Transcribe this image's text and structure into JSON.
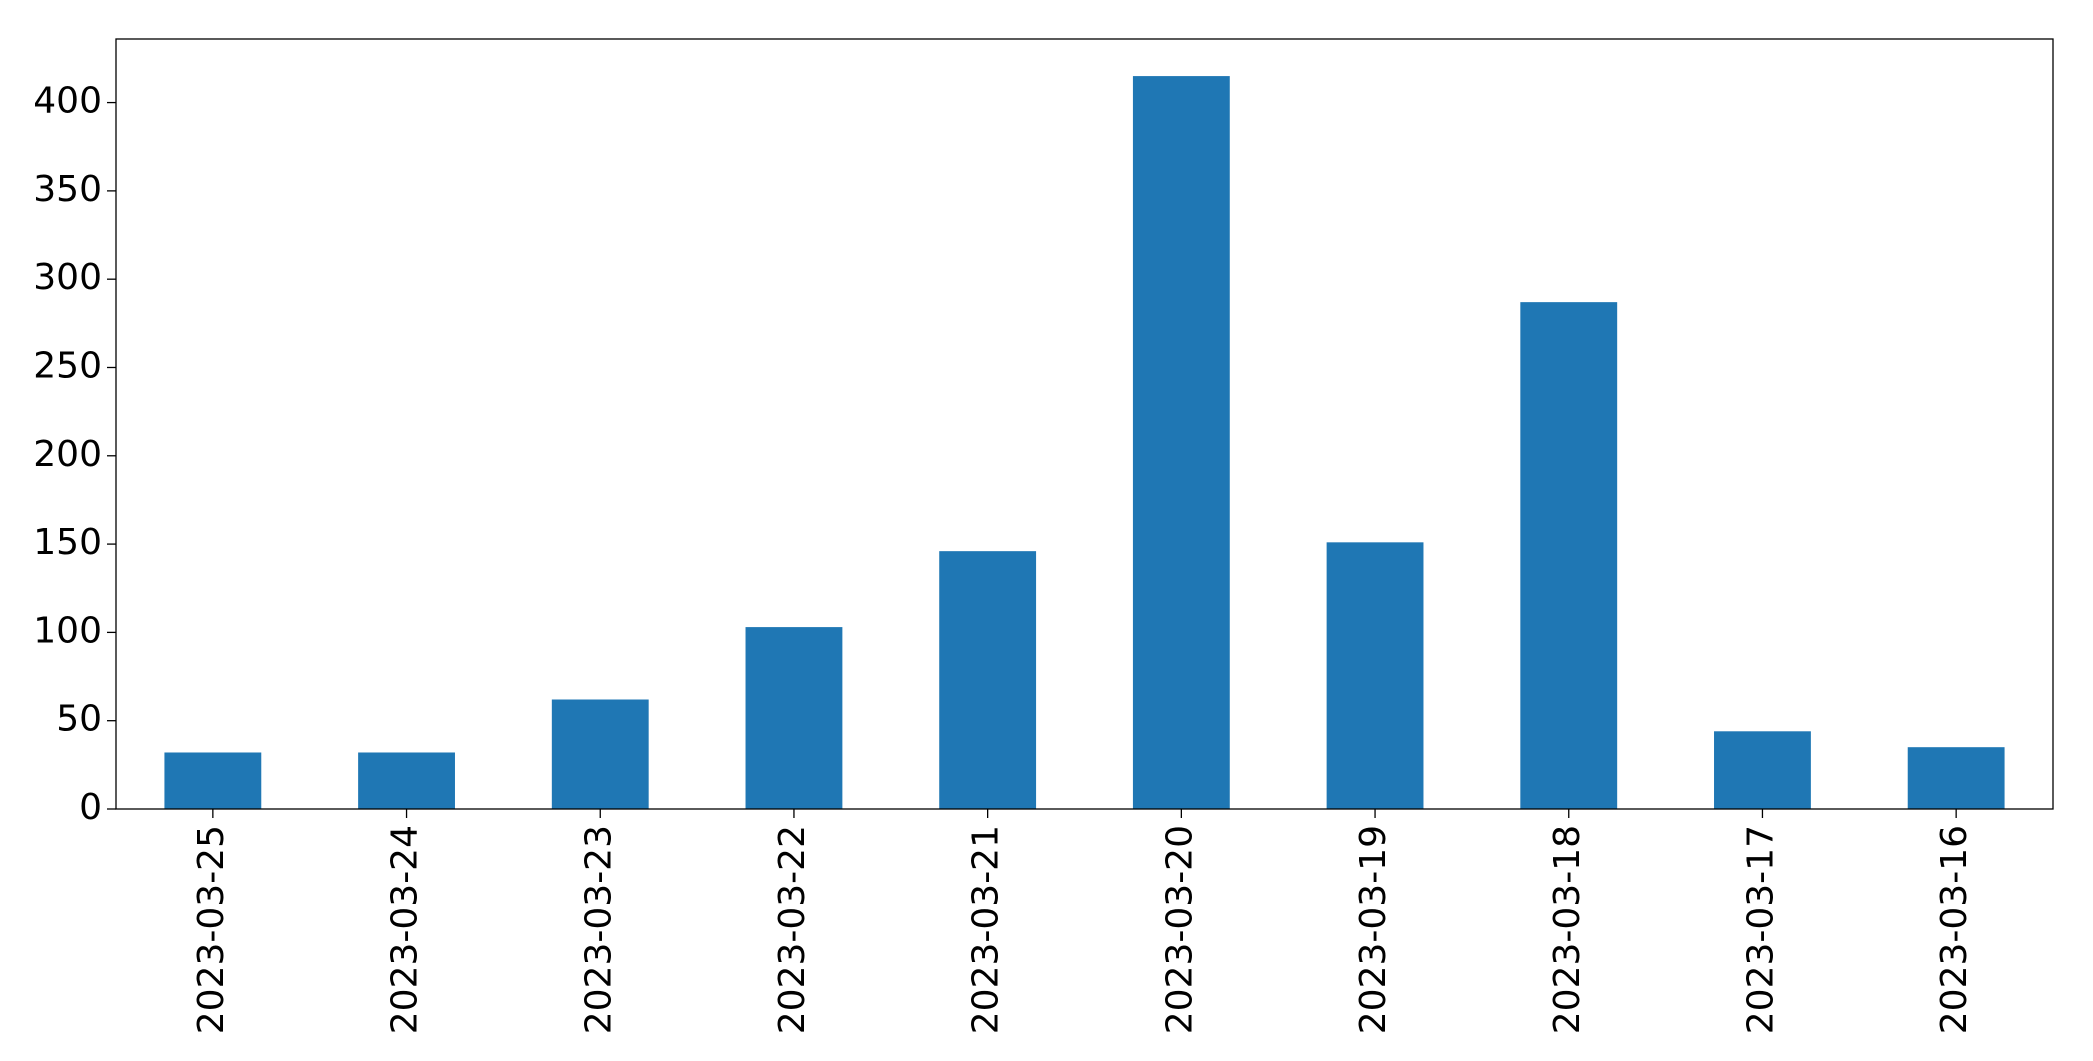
{
  "chart_data": {
    "type": "bar",
    "categories": [
      "2023-03-25",
      "2023-03-24",
      "2023-03-23",
      "2023-03-22",
      "2023-03-21",
      "2023-03-20",
      "2023-03-19",
      "2023-03-18",
      "2023-03-17",
      "2023-03-16"
    ],
    "values": [
      32,
      32,
      62,
      103,
      146,
      415,
      151,
      287,
      44,
      35
    ],
    "color": "#1f77b4",
    "ylim": [
      0,
      436
    ],
    "yticks": [
      0,
      50,
      100,
      150,
      200,
      250,
      300,
      350,
      400
    ],
    "grid": false
  }
}
